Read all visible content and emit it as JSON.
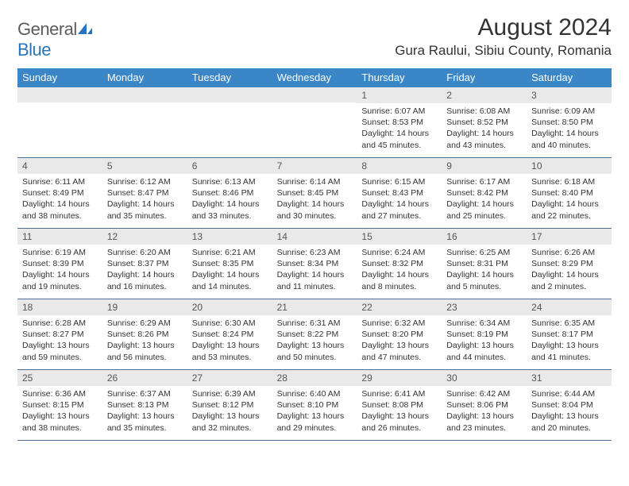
{
  "logo": {
    "word1": "General",
    "word2": "Blue"
  },
  "title": "August 2024",
  "location": "Gura Raului, Sibiu County, Romania",
  "colors": {
    "header_bg": "#3b86c6",
    "daynum_bg": "#e9e9e9",
    "week_border": "#4a6e92",
    "logo_gray": "#5c5c5c",
    "logo_blue": "#2b74b8"
  },
  "daynames": [
    "Sunday",
    "Monday",
    "Tuesday",
    "Wednesday",
    "Thursday",
    "Friday",
    "Saturday"
  ],
  "weeks": [
    [
      {
        "blank": true
      },
      {
        "blank": true
      },
      {
        "blank": true
      },
      {
        "blank": true
      },
      {
        "day": "1",
        "sunrise": "Sunrise: 6:07 AM",
        "sunset": "Sunset: 8:53 PM",
        "daylight": "Daylight: 14 hours and 45 minutes."
      },
      {
        "day": "2",
        "sunrise": "Sunrise: 6:08 AM",
        "sunset": "Sunset: 8:52 PM",
        "daylight": "Daylight: 14 hours and 43 minutes."
      },
      {
        "day": "3",
        "sunrise": "Sunrise: 6:09 AM",
        "sunset": "Sunset: 8:50 PM",
        "daylight": "Daylight: 14 hours and 40 minutes."
      }
    ],
    [
      {
        "day": "4",
        "sunrise": "Sunrise: 6:11 AM",
        "sunset": "Sunset: 8:49 PM",
        "daylight": "Daylight: 14 hours and 38 minutes."
      },
      {
        "day": "5",
        "sunrise": "Sunrise: 6:12 AM",
        "sunset": "Sunset: 8:47 PM",
        "daylight": "Daylight: 14 hours and 35 minutes."
      },
      {
        "day": "6",
        "sunrise": "Sunrise: 6:13 AM",
        "sunset": "Sunset: 8:46 PM",
        "daylight": "Daylight: 14 hours and 33 minutes."
      },
      {
        "day": "7",
        "sunrise": "Sunrise: 6:14 AM",
        "sunset": "Sunset: 8:45 PM",
        "daylight": "Daylight: 14 hours and 30 minutes."
      },
      {
        "day": "8",
        "sunrise": "Sunrise: 6:15 AM",
        "sunset": "Sunset: 8:43 PM",
        "daylight": "Daylight: 14 hours and 27 minutes."
      },
      {
        "day": "9",
        "sunrise": "Sunrise: 6:17 AM",
        "sunset": "Sunset: 8:42 PM",
        "daylight": "Daylight: 14 hours and 25 minutes."
      },
      {
        "day": "10",
        "sunrise": "Sunrise: 6:18 AM",
        "sunset": "Sunset: 8:40 PM",
        "daylight": "Daylight: 14 hours and 22 minutes."
      }
    ],
    [
      {
        "day": "11",
        "sunrise": "Sunrise: 6:19 AM",
        "sunset": "Sunset: 8:39 PM",
        "daylight": "Daylight: 14 hours and 19 minutes."
      },
      {
        "day": "12",
        "sunrise": "Sunrise: 6:20 AM",
        "sunset": "Sunset: 8:37 PM",
        "daylight": "Daylight: 14 hours and 16 minutes."
      },
      {
        "day": "13",
        "sunrise": "Sunrise: 6:21 AM",
        "sunset": "Sunset: 8:35 PM",
        "daylight": "Daylight: 14 hours and 14 minutes."
      },
      {
        "day": "14",
        "sunrise": "Sunrise: 6:23 AM",
        "sunset": "Sunset: 8:34 PM",
        "daylight": "Daylight: 14 hours and 11 minutes."
      },
      {
        "day": "15",
        "sunrise": "Sunrise: 6:24 AM",
        "sunset": "Sunset: 8:32 PM",
        "daylight": "Daylight: 14 hours and 8 minutes."
      },
      {
        "day": "16",
        "sunrise": "Sunrise: 6:25 AM",
        "sunset": "Sunset: 8:31 PM",
        "daylight": "Daylight: 14 hours and 5 minutes."
      },
      {
        "day": "17",
        "sunrise": "Sunrise: 6:26 AM",
        "sunset": "Sunset: 8:29 PM",
        "daylight": "Daylight: 14 hours and 2 minutes."
      }
    ],
    [
      {
        "day": "18",
        "sunrise": "Sunrise: 6:28 AM",
        "sunset": "Sunset: 8:27 PM",
        "daylight": "Daylight: 13 hours and 59 minutes."
      },
      {
        "day": "19",
        "sunrise": "Sunrise: 6:29 AM",
        "sunset": "Sunset: 8:26 PM",
        "daylight": "Daylight: 13 hours and 56 minutes."
      },
      {
        "day": "20",
        "sunrise": "Sunrise: 6:30 AM",
        "sunset": "Sunset: 8:24 PM",
        "daylight": "Daylight: 13 hours and 53 minutes."
      },
      {
        "day": "21",
        "sunrise": "Sunrise: 6:31 AM",
        "sunset": "Sunset: 8:22 PM",
        "daylight": "Daylight: 13 hours and 50 minutes."
      },
      {
        "day": "22",
        "sunrise": "Sunrise: 6:32 AM",
        "sunset": "Sunset: 8:20 PM",
        "daylight": "Daylight: 13 hours and 47 minutes."
      },
      {
        "day": "23",
        "sunrise": "Sunrise: 6:34 AM",
        "sunset": "Sunset: 8:19 PM",
        "daylight": "Daylight: 13 hours and 44 minutes."
      },
      {
        "day": "24",
        "sunrise": "Sunrise: 6:35 AM",
        "sunset": "Sunset: 8:17 PM",
        "daylight": "Daylight: 13 hours and 41 minutes."
      }
    ],
    [
      {
        "day": "25",
        "sunrise": "Sunrise: 6:36 AM",
        "sunset": "Sunset: 8:15 PM",
        "daylight": "Daylight: 13 hours and 38 minutes."
      },
      {
        "day": "26",
        "sunrise": "Sunrise: 6:37 AM",
        "sunset": "Sunset: 8:13 PM",
        "daylight": "Daylight: 13 hours and 35 minutes."
      },
      {
        "day": "27",
        "sunrise": "Sunrise: 6:39 AM",
        "sunset": "Sunset: 8:12 PM",
        "daylight": "Daylight: 13 hours and 32 minutes."
      },
      {
        "day": "28",
        "sunrise": "Sunrise: 6:40 AM",
        "sunset": "Sunset: 8:10 PM",
        "daylight": "Daylight: 13 hours and 29 minutes."
      },
      {
        "day": "29",
        "sunrise": "Sunrise: 6:41 AM",
        "sunset": "Sunset: 8:08 PM",
        "daylight": "Daylight: 13 hours and 26 minutes."
      },
      {
        "day": "30",
        "sunrise": "Sunrise: 6:42 AM",
        "sunset": "Sunset: 8:06 PM",
        "daylight": "Daylight: 13 hours and 23 minutes."
      },
      {
        "day": "31",
        "sunrise": "Sunrise: 6:44 AM",
        "sunset": "Sunset: 8:04 PM",
        "daylight": "Daylight: 13 hours and 20 minutes."
      }
    ]
  ]
}
